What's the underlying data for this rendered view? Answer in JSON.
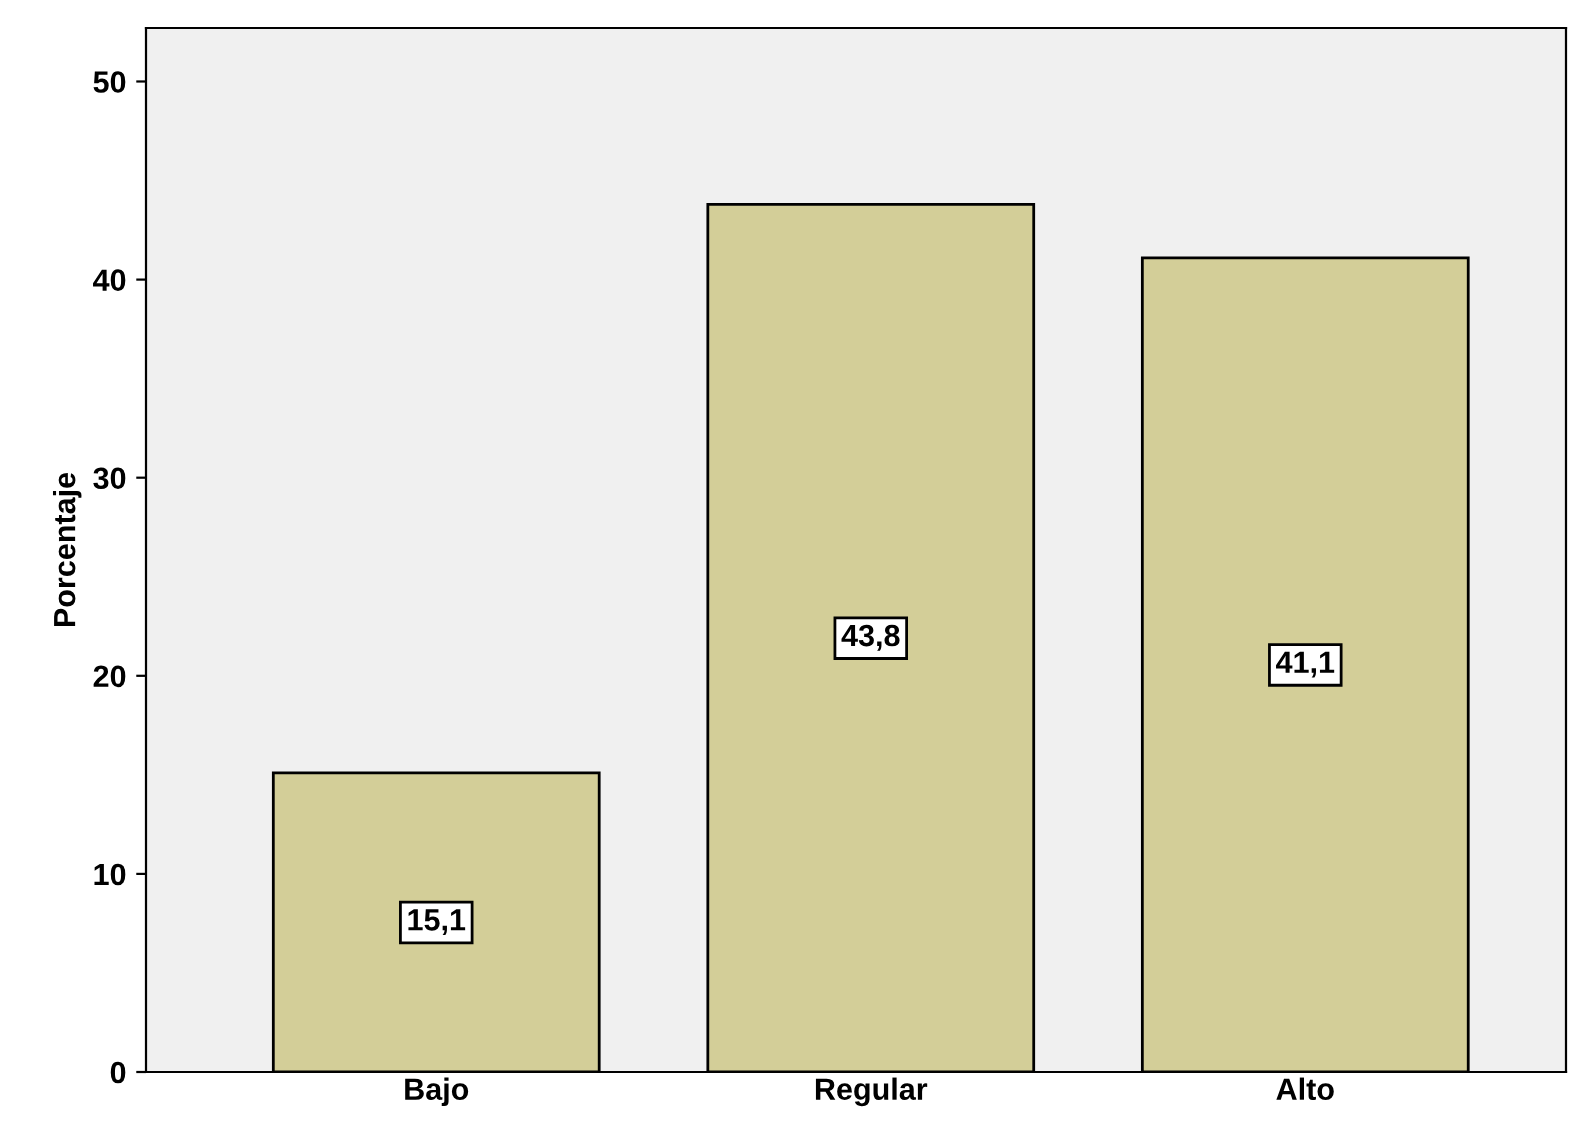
{
  "chart_data": {
    "type": "bar",
    "ylabel": "Porcentaje",
    "categories": [
      "Bajo",
      "Regular",
      "Alto"
    ],
    "values": [
      15.1,
      43.8,
      41.1
    ],
    "value_labels": [
      "15,1",
      "43,8",
      "41,1"
    ],
    "color": "#d3ce98",
    "ylim": [
      0,
      52.7
    ],
    "yticks": [
      0,
      10,
      20,
      30,
      40,
      50
    ],
    "grid": false,
    "legend": false
  }
}
